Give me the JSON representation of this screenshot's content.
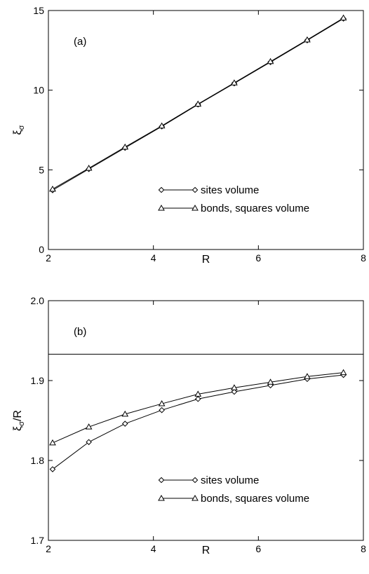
{
  "chart_data": [
    {
      "type": "line",
      "panel_label": "(a)",
      "xlabel": "R",
      "ylabel": "ξ",
      "ylabel_sub": "σ",
      "xlim": [
        2,
        8
      ],
      "ylim": [
        0,
        15
      ],
      "xticks": [
        2,
        4,
        6,
        8
      ],
      "yticks": [
        0,
        5,
        10,
        15
      ],
      "grid": false,
      "legend_position": "lower-right",
      "series": [
        {
          "name": "sites volume",
          "marker": "diamond",
          "x": [
            2.08,
            2.77,
            3.46,
            4.16,
            4.85,
            5.54,
            6.23,
            6.93,
            7.62
          ],
          "y": [
            3.72,
            5.05,
            6.38,
            7.72,
            9.1,
            10.43,
            11.76,
            13.13,
            14.49
          ]
        },
        {
          "name": "bonds, squares volume",
          "marker": "triangle",
          "x": [
            2.08,
            2.77,
            3.46,
            4.16,
            4.85,
            5.54,
            6.23,
            6.93,
            7.62
          ],
          "y": [
            3.79,
            5.1,
            6.43,
            7.76,
            9.13,
            10.46,
            11.8,
            13.16,
            14.53
          ]
        }
      ]
    },
    {
      "type": "line",
      "panel_label": "(b)",
      "xlabel": "R",
      "ylabel": "ξ",
      "ylabel_sub": "σ",
      "ylabel_suffix": "/R",
      "xlim": [
        2,
        8
      ],
      "ylim": [
        1.7,
        2.0
      ],
      "xticks": [
        2,
        4,
        6,
        8
      ],
      "yticks": [
        1.7,
        1.8,
        1.9,
        2.0
      ],
      "ytick_labels": [
        "1.7",
        "1.8",
        "1.9",
        "2.0"
      ],
      "grid": false,
      "legend_position": "lower-right",
      "reference_line_y": 1.933,
      "series": [
        {
          "name": "sites volume",
          "marker": "diamond",
          "x": [
            2.08,
            2.77,
            3.46,
            4.16,
            4.85,
            5.54,
            6.23,
            6.93,
            7.62
          ],
          "y": [
            1.789,
            1.823,
            1.846,
            1.863,
            1.877,
            1.886,
            1.894,
            1.902,
            1.907
          ]
        },
        {
          "name": "bonds, squares volume",
          "marker": "triangle",
          "x": [
            2.08,
            2.77,
            3.46,
            4.16,
            4.85,
            5.54,
            6.23,
            6.93,
            7.62
          ],
          "y": [
            1.822,
            1.842,
            1.858,
            1.871,
            1.883,
            1.891,
            1.898,
            1.905,
            1.91
          ]
        }
      ]
    }
  ]
}
